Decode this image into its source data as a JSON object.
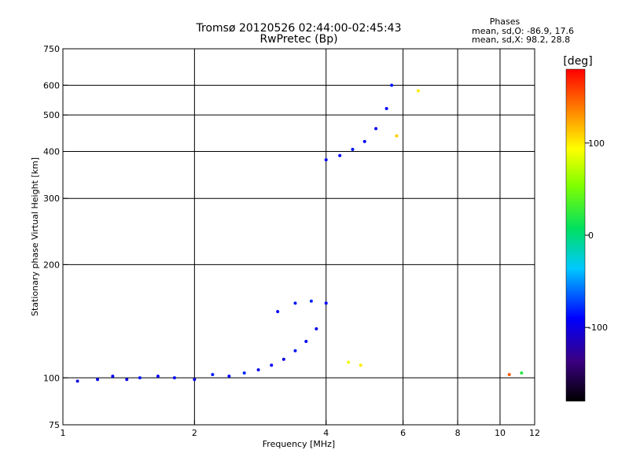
{
  "header": {
    "title_line1": "Tromsø 20120526 02:44:00-02:45:43",
    "title_line2": "RwPretec (Bp)"
  },
  "stats": {
    "heading": "Phases",
    "line1": "mean, sd,O: -86.9, 17.6",
    "line2": "mean, sd,X:  98.2, 28.8"
  },
  "colorbar": {
    "unit_label": "[deg]",
    "ticks": [
      {
        "value": 100,
        "label": "100"
      },
      {
        "value": 0,
        "label": "0"
      },
      {
        "value": -100,
        "label": "-100"
      }
    ],
    "range": [
      -180,
      180
    ]
  },
  "chart_data": {
    "type": "scatter",
    "xlabel": "Frequency [MHz]",
    "ylabel": "Stationary phase Virtual Height [km]",
    "x_scale": "log",
    "y_scale": "log",
    "xlim": [
      1,
      12
    ],
    "ylim": [
      75,
      750
    ],
    "grid": true,
    "x_ticks": [
      {
        "value": 1,
        "label": "1"
      },
      {
        "value": 2,
        "label": "2"
      },
      {
        "value": 4,
        "label": "4"
      },
      {
        "value": 6,
        "label": "6"
      },
      {
        "value": 8,
        "label": "8"
      },
      {
        "value": 10,
        "label": "10"
      },
      {
        "value": 12,
        "label": "12"
      }
    ],
    "y_ticks": [
      {
        "value": 75,
        "label": "75"
      },
      {
        "value": 100,
        "label": "100"
      },
      {
        "value": 200,
        "label": "200"
      },
      {
        "value": 300,
        "label": "300"
      },
      {
        "value": 400,
        "label": "400"
      },
      {
        "value": 500,
        "label": "500"
      },
      {
        "value": 600,
        "label": "600"
      },
      {
        "value": 750,
        "label": "750"
      }
    ],
    "x_gridlines": [
      2,
      4,
      6,
      8,
      10
    ],
    "y_gridlines": [
      100,
      200,
      300,
      400,
      500,
      600
    ],
    "series": [
      {
        "values": [
          {
            "x": 1.08,
            "y": 98,
            "phase": -100
          },
          {
            "x": 1.2,
            "y": 99,
            "phase": -95
          },
          {
            "x": 1.3,
            "y": 101,
            "phase": -90
          },
          {
            "x": 1.4,
            "y": 99,
            "phase": -100
          },
          {
            "x": 1.5,
            "y": 100,
            "phase": -85
          },
          {
            "x": 1.65,
            "y": 101,
            "phase": -95
          },
          {
            "x": 1.8,
            "y": 100,
            "phase": -90
          },
          {
            "x": 2.0,
            "y": 99,
            "phase": -100
          },
          {
            "x": 2.2,
            "y": 102,
            "phase": -85
          },
          {
            "x": 2.4,
            "y": 101,
            "phase": -90
          },
          {
            "x": 2.6,
            "y": 103,
            "phase": -80
          },
          {
            "x": 2.8,
            "y": 105,
            "phase": -95
          },
          {
            "x": 3.0,
            "y": 108,
            "phase": -90
          },
          {
            "x": 3.2,
            "y": 112,
            "phase": -100
          },
          {
            "x": 3.4,
            "y": 118,
            "phase": -85
          },
          {
            "x": 3.6,
            "y": 125,
            "phase": -90
          },
          {
            "x": 3.8,
            "y": 135,
            "phase": -95
          },
          {
            "x": 3.1,
            "y": 150,
            "phase": -90
          },
          {
            "x": 3.4,
            "y": 158,
            "phase": -85
          },
          {
            "x": 3.7,
            "y": 160,
            "phase": -80
          },
          {
            "x": 4.0,
            "y": 158,
            "phase": -90
          },
          {
            "x": 4.0,
            "y": 380,
            "phase": -95
          },
          {
            "x": 4.3,
            "y": 390,
            "phase": -90
          },
          {
            "x": 4.6,
            "y": 405,
            "phase": -85
          },
          {
            "x": 4.9,
            "y": 425,
            "phase": -90
          },
          {
            "x": 5.2,
            "y": 460,
            "phase": -95
          },
          {
            "x": 5.5,
            "y": 520,
            "phase": -90
          },
          {
            "x": 5.65,
            "y": 600,
            "phase": -85
          },
          {
            "x": 4.5,
            "y": 110,
            "phase": 90
          },
          {
            "x": 4.8,
            "y": 108,
            "phase": 100
          },
          {
            "x": 5.8,
            "y": 440,
            "phase": 110
          },
          {
            "x": 6.5,
            "y": 580,
            "phase": 100
          },
          {
            "x": 10.5,
            "y": 102,
            "phase": 150
          },
          {
            "x": 11.2,
            "y": 103,
            "phase": 20
          }
        ]
      }
    ]
  }
}
